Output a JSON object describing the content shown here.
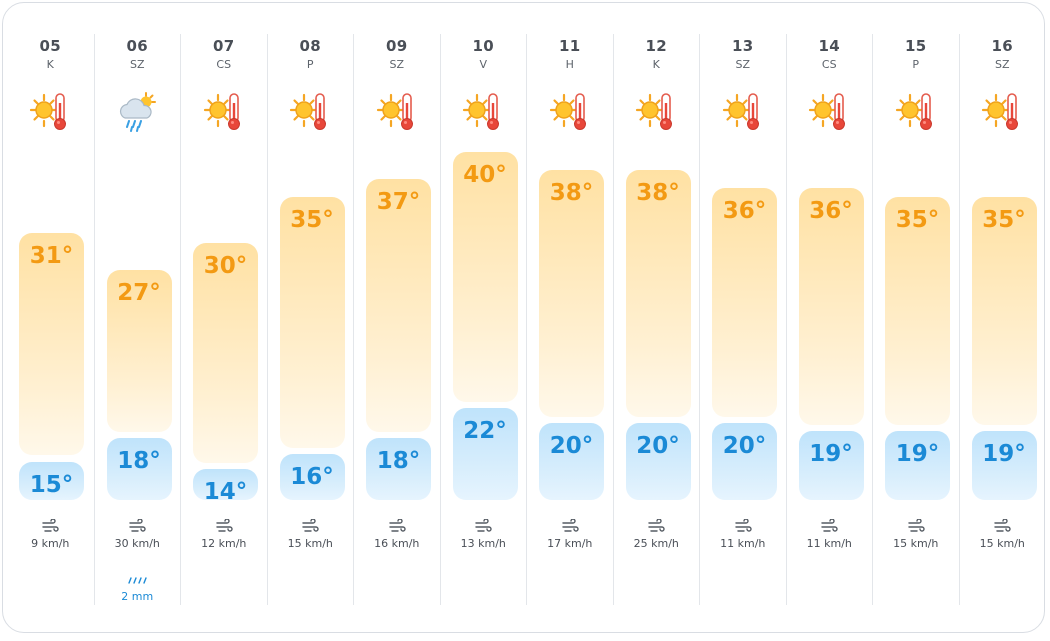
{
  "colors": {
    "high_text": "#f39a13",
    "low_text": "#1b8ad6",
    "high_bar": "#ffe1a3",
    "low_bar": "#bfe3fb"
  },
  "days": [
    {
      "date": "05",
      "name": "K",
      "icon": "sunny-hot-icon",
      "high": 31,
      "high_label": "31°",
      "low": 15,
      "low_label": "15°",
      "wind": "9 km/h",
      "rain": ""
    },
    {
      "date": "06",
      "name": "SZ",
      "icon": "rain-cloud-icon",
      "high": 27,
      "high_label": "27°",
      "low": 18,
      "low_label": "18°",
      "wind": "30 km/h",
      "rain": "2 mm"
    },
    {
      "date": "07",
      "name": "CS",
      "icon": "sunny-hot-icon",
      "high": 30,
      "high_label": "30°",
      "low": 14,
      "low_label": "14°",
      "wind": "12 km/h",
      "rain": ""
    },
    {
      "date": "08",
      "name": "P",
      "icon": "sunny-hot-icon",
      "high": 35,
      "high_label": "35°",
      "low": 16,
      "low_label": "16°",
      "wind": "15 km/h",
      "rain": ""
    },
    {
      "date": "09",
      "name": "SZ",
      "icon": "sunny-hot-icon",
      "high": 37,
      "high_label": "37°",
      "low": 18,
      "low_label": "18°",
      "wind": "16 km/h",
      "rain": ""
    },
    {
      "date": "10",
      "name": "V",
      "icon": "sunny-hot-icon",
      "high": 40,
      "high_label": "40°",
      "low": 22,
      "low_label": "22°",
      "wind": "13 km/h",
      "rain": ""
    },
    {
      "date": "11",
      "name": "H",
      "icon": "sunny-hot-icon",
      "high": 38,
      "high_label": "38°",
      "low": 20,
      "low_label": "20°",
      "wind": "17 km/h",
      "rain": ""
    },
    {
      "date": "12",
      "name": "K",
      "icon": "sunny-hot-icon",
      "high": 38,
      "high_label": "38°",
      "low": 20,
      "low_label": "20°",
      "wind": "25 km/h",
      "rain": ""
    },
    {
      "date": "13",
      "name": "SZ",
      "icon": "sunny-hot-icon",
      "high": 36,
      "high_label": "36°",
      "low": 20,
      "low_label": "20°",
      "wind": "11 km/h",
      "rain": ""
    },
    {
      "date": "14",
      "name": "CS",
      "icon": "sunny-hot-icon",
      "high": 36,
      "high_label": "36°",
      "low": 19,
      "low_label": "19°",
      "wind": "11 km/h",
      "rain": ""
    },
    {
      "date": "15",
      "name": "P",
      "icon": "sunny-hot-icon",
      "high": 35,
      "high_label": "35°",
      "low": 19,
      "low_label": "19°",
      "wind": "15 km/h",
      "rain": ""
    },
    {
      "date": "16",
      "name": "SZ",
      "icon": "sunny-hot-icon",
      "high": 35,
      "high_label": "35°",
      "low": 19,
      "low_label": "19°",
      "wind": "15 km/h",
      "rain": ""
    }
  ]
}
